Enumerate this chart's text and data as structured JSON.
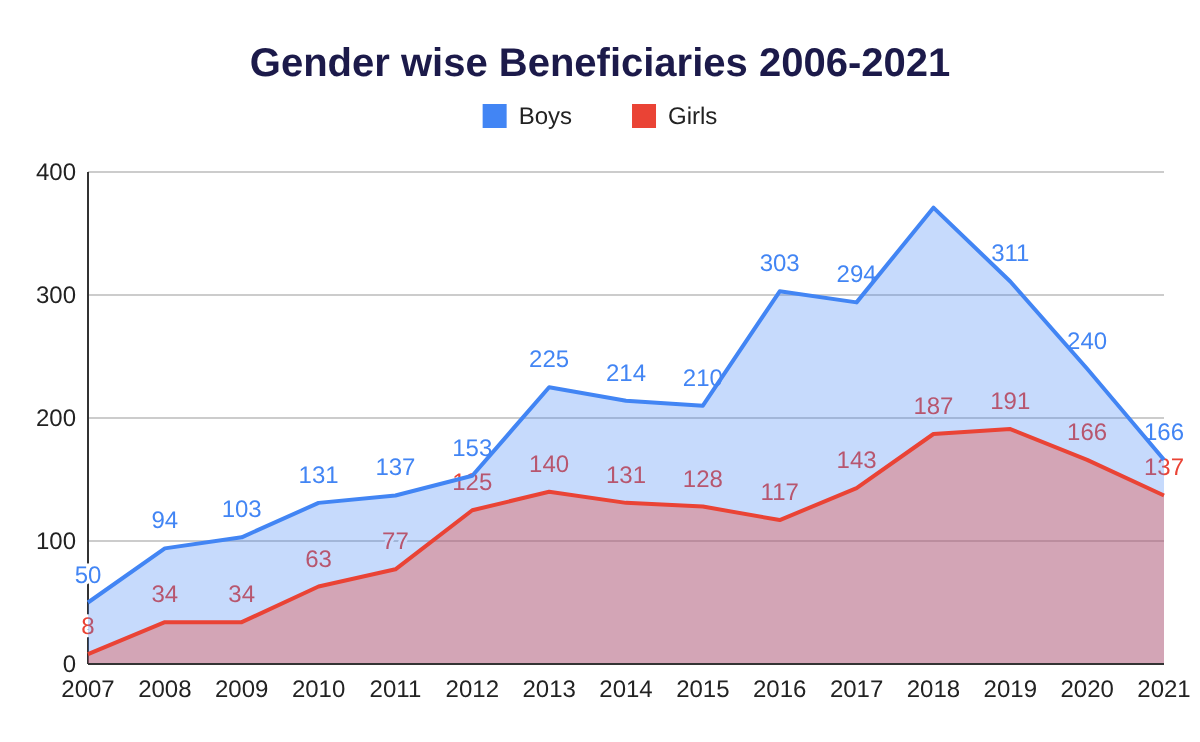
{
  "chart_data": {
    "type": "area",
    "title": "Gender wise Beneficiaries 2006-2021",
    "categories": [
      "2007",
      "2008",
      "2009",
      "2010",
      "2011",
      "2012",
      "2013",
      "2014",
      "2015",
      "2016",
      "2017",
      "2018",
      "2019",
      "2020",
      "2021"
    ],
    "series": [
      {
        "name": "Boys",
        "color": "#4285f4",
        "values": [
          50,
          94,
          103,
          131,
          137,
          153,
          225,
          214,
          210,
          303,
          294,
          371,
          311,
          240,
          166
        ],
        "value_labels": [
          "50",
          "94",
          "103",
          "131",
          "137",
          "153",
          "225",
          "214",
          "210",
          "303",
          "294",
          null,
          "311",
          "240",
          "166"
        ]
      },
      {
        "name": "Girls",
        "color": "#ea4335",
        "values": [
          8,
          34,
          34,
          63,
          77,
          125,
          140,
          131,
          128,
          117,
          143,
          187,
          191,
          166,
          137
        ],
        "value_labels": [
          "8",
          "34",
          "34",
          "63",
          "77",
          "125",
          "140",
          "131",
          "128",
          "117",
          "143",
          "187",
          "191",
          "166",
          "137"
        ]
      }
    ],
    "ylim": [
      0,
      400
    ],
    "yticks": [
      0,
      100,
      200,
      300,
      400
    ],
    "grid": "y",
    "legend": "top"
  }
}
